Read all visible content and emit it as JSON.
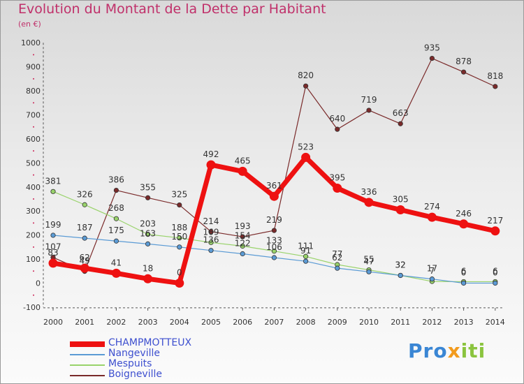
{
  "title": "Evolution du Montant de la Dette par Habitant",
  "subtitle": "(en €)",
  "logo": {
    "text": "Proxiti",
    "colors": [
      "#3a86d4",
      "#8bc43f",
      "#f29b1d"
    ]
  },
  "chart_data": {
    "type": "line",
    "title": "Evolution du Montant de la Dette par Habitant",
    "subtitle": "(en €)",
    "xlabel": "",
    "ylabel": "",
    "x": [
      "2000",
      "2001",
      "2002",
      "2003",
      "2004",
      "2005",
      "2006",
      "2007",
      "2008",
      "2009",
      "2010",
      "2011",
      "2012",
      "2013",
      "2014"
    ],
    "ylim": [
      -100,
      1000
    ],
    "yticks": [
      -100,
      0,
      100,
      200,
      300,
      400,
      500,
      600,
      700,
      800,
      900,
      1000
    ],
    "grid": false,
    "legend_position": "bottom-left",
    "series": [
      {
        "name": "CHAMPMOTTEUX",
        "color": "#ee1111",
        "values": [
          83,
          62,
          41,
          18,
          0,
          492,
          465,
          361,
          523,
          395,
          336,
          305,
          274,
          246,
          217
        ],
        "labels": [
          "83",
          "62",
          "41",
          "18",
          "0",
          "492",
          "465",
          "361",
          "523",
          "395",
          "336",
          "305",
          "274",
          "246",
          "217"
        ]
      },
      {
        "name": "Nangeville",
        "color": "#5b9bd5",
        "values": [
          199,
          187,
          175,
          163,
          150,
          136,
          122,
          106,
          91,
          62,
          47,
          32,
          17,
          0,
          0
        ],
        "labels": [
          "199",
          "187",
          "175",
          "163",
          "150",
          "136",
          "122",
          "106",
          "91",
          "62",
          "47",
          "32",
          "17",
          "0",
          "0"
        ]
      },
      {
        "name": "Mespuits",
        "color": "#99d36b",
        "values": [
          381,
          326,
          268,
          203,
          188,
          169,
          154,
          133,
          111,
          77,
          55,
          32,
          7,
          6,
          6
        ],
        "labels": [
          "381",
          "326",
          "268",
          "203",
          "188",
          "169",
          "154",
          "133",
          "111",
          "77",
          "55",
          "32",
          "7",
          "6",
          "6"
        ]
      },
      {
        "name": "Boigneville",
        "color": "#7a2a2a",
        "values": [
          107,
          49,
          386,
          355,
          325,
          214,
          193,
          219,
          820,
          640,
          719,
          663,
          935,
          878,
          818
        ],
        "labels": [
          "107",
          "49",
          "386",
          "355",
          "325",
          "214",
          "193",
          "219",
          "820",
          "640",
          "719",
          "663",
          "935",
          "878",
          "818"
        ]
      }
    ]
  }
}
